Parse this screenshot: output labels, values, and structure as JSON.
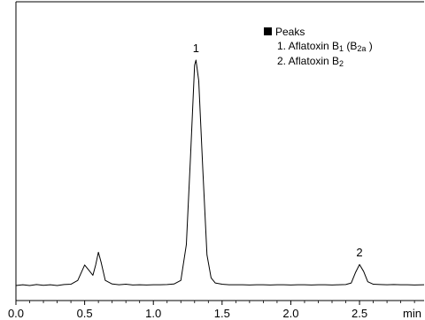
{
  "chart_data": {
    "type": "line",
    "xlabel": "min",
    "xlim": [
      0.0,
      2.97
    ],
    "ylim": [
      0,
      100
    ],
    "grid": false,
    "x_ticks": [
      {
        "value": 0.0,
        "label": "0.0"
      },
      {
        "value": 0.5,
        "label": "0.5"
      },
      {
        "value": 1.0,
        "label": "1.0"
      },
      {
        "value": 1.5,
        "label": "1.5"
      },
      {
        "value": 2.0,
        "label": "2.0"
      },
      {
        "value": 2.5,
        "label": "2.5"
      }
    ],
    "legend": {
      "placement": "top-right",
      "title": "Peaks",
      "entries": [
        {
          "prefix": "1. Aflatoxin B",
          "sub": "1",
          "suffix": " (B",
          "sub2": "2a",
          "end": " )"
        },
        {
          "prefix": "2. Aflatoxin B",
          "sub": "2",
          "suffix": "",
          "sub2": "",
          "end": ""
        }
      ]
    },
    "peaks": [
      {
        "label": "1",
        "x": 1.31,
        "y": 88
      },
      {
        "label": "2",
        "x": 2.5,
        "y": 8.2
      }
    ],
    "series": [
      {
        "points": [
          [
            0.0,
            0.0
          ],
          [
            0.05,
            0.3
          ],
          [
            0.1,
            0.0
          ],
          [
            0.15,
            0.4
          ],
          [
            0.2,
            0.1
          ],
          [
            0.25,
            0.3
          ],
          [
            0.3,
            0.0
          ],
          [
            0.35,
            0.4
          ],
          [
            0.4,
            0.5
          ],
          [
            0.45,
            2.0
          ],
          [
            0.5,
            8.0
          ],
          [
            0.53,
            6.0
          ],
          [
            0.56,
            4.0
          ],
          [
            0.58,
            8.0
          ],
          [
            0.6,
            13.0
          ],
          [
            0.62,
            9.0
          ],
          [
            0.65,
            2.0
          ],
          [
            0.7,
            0.6
          ],
          [
            0.75,
            0.3
          ],
          [
            0.8,
            0.5
          ],
          [
            0.85,
            0.2
          ],
          [
            0.9,
            0.3
          ],
          [
            0.95,
            0.2
          ],
          [
            1.0,
            0.3
          ],
          [
            1.05,
            0.3
          ],
          [
            1.1,
            0.4
          ],
          [
            1.15,
            0.6
          ],
          [
            1.2,
            2.0
          ],
          [
            1.24,
            16.0
          ],
          [
            1.27,
            50.0
          ],
          [
            1.3,
            86.0
          ],
          [
            1.31,
            88.0
          ],
          [
            1.33,
            80.0
          ],
          [
            1.36,
            45.0
          ],
          [
            1.39,
            12.0
          ],
          [
            1.42,
            3.0
          ],
          [
            1.45,
            1.0
          ],
          [
            1.5,
            0.5
          ],
          [
            1.55,
            0.3
          ],
          [
            1.6,
            0.3
          ],
          [
            1.65,
            0.3
          ],
          [
            1.7,
            0.2
          ],
          [
            1.75,
            0.3
          ],
          [
            1.8,
            0.3
          ],
          [
            1.85,
            0.2
          ],
          [
            1.9,
            0.3
          ],
          [
            1.95,
            0.3
          ],
          [
            2.0,
            0.2
          ],
          [
            2.05,
            0.3
          ],
          [
            2.1,
            0.3
          ],
          [
            2.15,
            0.2
          ],
          [
            2.2,
            0.3
          ],
          [
            2.25,
            0.3
          ],
          [
            2.3,
            0.2
          ],
          [
            2.35,
            0.3
          ],
          [
            2.4,
            0.4
          ],
          [
            2.44,
            1.0
          ],
          [
            2.47,
            5.0
          ],
          [
            2.5,
            8.2
          ],
          [
            2.53,
            5.5
          ],
          [
            2.56,
            1.5
          ],
          [
            2.6,
            0.5
          ],
          [
            2.65,
            0.4
          ],
          [
            2.7,
            0.3
          ],
          [
            2.75,
            0.4
          ],
          [
            2.8,
            0.3
          ],
          [
            2.85,
            0.3
          ],
          [
            2.9,
            0.2
          ],
          [
            2.97,
            0.3
          ]
        ]
      }
    ]
  }
}
